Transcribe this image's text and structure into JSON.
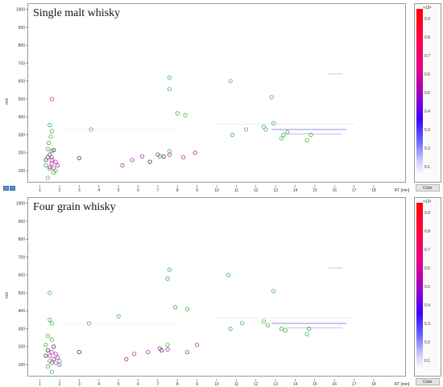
{
  "colorbar": {
    "exponent": "×10⁶",
    "ticks": [
      "0.9",
      "0.8",
      "0.7",
      "0.6",
      "0.5",
      "0.4",
      "0.3",
      "0.2",
      "0.1"
    ],
    "button_label": "Color"
  },
  "chart_data": [
    {
      "type": "scatter",
      "title": "Single malt whisky",
      "xlabel": "RT [min]",
      "ylabel": "m/z",
      "xlim": [
        0.4,
        19.6
      ],
      "ylim": [
        20,
        1030
      ],
      "xticks": [
        1,
        2,
        3,
        4,
        5,
        6,
        7,
        8,
        9,
        10,
        11,
        12,
        13,
        14,
        15,
        16,
        17,
        18
      ],
      "yticks": [
        100,
        200,
        300,
        400,
        500,
        600,
        700,
        800,
        900,
        1000
      ],
      "grid": false,
      "series": [
        {
          "color": "#3cb43c",
          "points": [
            [
              1.5,
              355
            ],
            [
              1.6,
              320
            ],
            [
              1.55,
              290
            ],
            [
              1.45,
              255
            ],
            [
              1.4,
              220
            ],
            [
              1.6,
              210
            ],
            [
              1.3,
              130
            ],
            [
              1.5,
              110
            ],
            [
              1.7,
              90
            ],
            [
              1.4,
              60
            ],
            [
              1.8,
              100
            ],
            [
              3.6,
              330
            ],
            [
              7.6,
              620
            ],
            [
              7.6,
              555
            ],
            [
              8.0,
              420
            ],
            [
              7.1,
              180
            ],
            [
              8.4,
              410
            ],
            [
              7.6,
              210
            ],
            [
              10.8,
              300
            ],
            [
              10.7,
              600
            ],
            [
              11.5,
              330
            ],
            [
              12.4,
              345
            ],
            [
              12.5,
              330
            ],
            [
              12.8,
              510
            ],
            [
              12.9,
              365
            ],
            [
              13.4,
              300
            ],
            [
              13.6,
              315
            ],
            [
              14.6,
              270
            ],
            [
              14.8,
              300
            ],
            [
              13.3,
              280
            ]
          ]
        },
        {
          "color": "#b02cb0",
          "points": [
            [
              1.6,
              140
            ],
            [
              1.5,
              120
            ],
            [
              1.7,
              115
            ],
            [
              1.5,
              190
            ],
            [
              1.6,
              175
            ],
            [
              1.6,
              160
            ],
            [
              1.8,
              150
            ],
            [
              5.2,
              130
            ],
            [
              5.7,
              160
            ],
            [
              6.2,
              180
            ],
            [
              7.0,
              190
            ],
            [
              7.6,
              190
            ],
            [
              8.3,
              175
            ],
            [
              8.9,
              200
            ],
            [
              1.6,
              500
            ],
            [
              1.9,
              130
            ]
          ]
        },
        {
          "color": "#3a3a3a",
          "points": [
            [
              1.4,
              175
            ],
            [
              3.0,
              170
            ],
            [
              6.6,
              150
            ],
            [
              7.3,
              180
            ],
            [
              1.7,
              215
            ],
            [
              1.3,
              160
            ]
          ]
        }
      ]
    },
    {
      "type": "scatter",
      "title": "Four grain whisky",
      "xlabel": "RT [min]",
      "ylabel": "m/z",
      "xlim": [
        0.4,
        19.6
      ],
      "ylim": [
        20,
        1030
      ],
      "xticks": [
        1,
        2,
        3,
        4,
        5,
        6,
        7,
        8,
        9,
        10,
        11,
        12,
        13,
        14,
        15,
        16,
        17,
        18
      ],
      "yticks": [
        100,
        200,
        300,
        400,
        500,
        600,
        700,
        800,
        900,
        1000
      ],
      "grid": false,
      "series": [
        {
          "color": "#3cb43c",
          "points": [
            [
              1.5,
              350
            ],
            [
              1.6,
              330
            ],
            [
              1.4,
              260
            ],
            [
              1.6,
              240
            ],
            [
              1.3,
              210
            ],
            [
              1.5,
              120
            ],
            [
              1.4,
              90
            ],
            [
              1.6,
              60
            ],
            [
              1.8,
              110
            ],
            [
              2.0,
              120
            ],
            [
              3.5,
              330
            ],
            [
              5.0,
              370
            ],
            [
              7.6,
              630
            ],
            [
              7.5,
              580
            ],
            [
              7.9,
              420
            ],
            [
              8.5,
              410
            ],
            [
              7.5,
              210
            ],
            [
              10.7,
              300
            ],
            [
              10.6,
              600
            ],
            [
              11.3,
              330
            ],
            [
              12.4,
              340
            ],
            [
              12.6,
              320
            ],
            [
              12.9,
              510
            ],
            [
              13.3,
              300
            ],
            [
              13.5,
              290
            ],
            [
              14.6,
              270
            ],
            [
              14.7,
              300
            ],
            [
              1.5,
              500
            ]
          ]
        },
        {
          "color": "#b02cb0",
          "points": [
            [
              1.6,
              170
            ],
            [
              1.5,
              150
            ],
            [
              1.7,
              130
            ],
            [
              1.6,
              110
            ],
            [
              1.8,
              160
            ],
            [
              1.9,
              140
            ],
            [
              5.4,
              130
            ],
            [
              5.8,
              160
            ],
            [
              6.5,
              170
            ],
            [
              7.1,
              190
            ],
            [
              7.5,
              185
            ],
            [
              8.5,
              170
            ],
            [
              9.0,
              210
            ],
            [
              2.0,
              100
            ]
          ]
        },
        {
          "color": "#3a3a3a",
          "points": [
            [
              1.4,
              180
            ],
            [
              3.0,
              170
            ],
            [
              7.2,
              180
            ],
            [
              1.7,
              200
            ],
            [
              1.3,
              150
            ]
          ]
        }
      ]
    }
  ]
}
